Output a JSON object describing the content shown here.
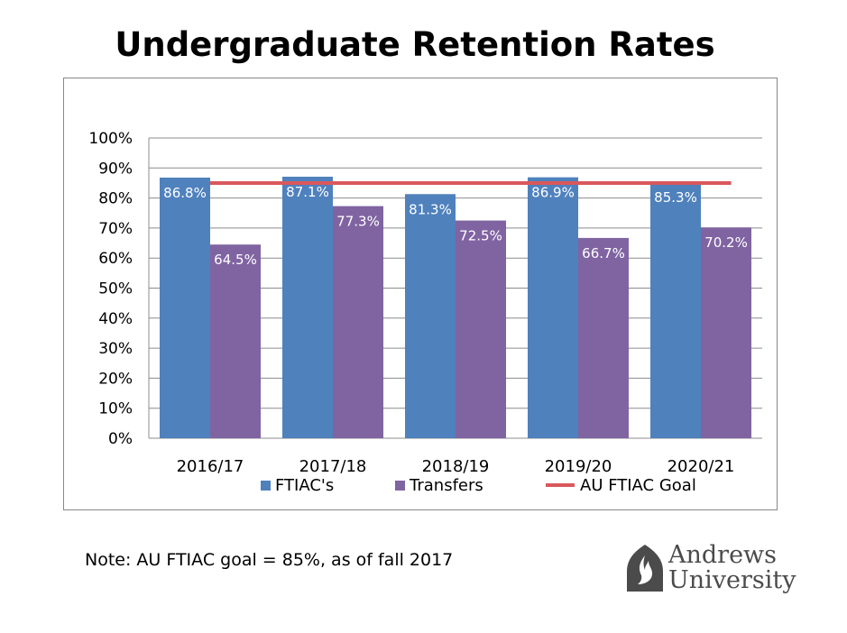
{
  "title": "Undergraduate Retention Rates",
  "note": "Note: AU FTIAC goal = 85%, as of fall 2017",
  "logo": {
    "line1": "Andrews",
    "line2": "University",
    "icon": "flame-shield-icon"
  },
  "chart_data": {
    "type": "bar",
    "title": "Undergraduate Retention Rates",
    "categories": [
      "2016/17",
      "2017/18",
      "2018/19",
      "2019/20",
      "2020/21"
    ],
    "series": [
      {
        "name": "FTIAC's",
        "values": [
          86.8,
          87.1,
          81.3,
          86.9,
          85.3
        ],
        "labels": [
          "86.8%",
          "87.1%",
          "81.3%",
          "86.9%",
          "85.3%"
        ],
        "color": "#4f81bd"
      },
      {
        "name": "Transfers",
        "values": [
          64.5,
          77.3,
          72.5,
          66.7,
          70.2
        ],
        "labels": [
          "64.5%",
          "77.3%",
          "72.5%",
          "66.7%",
          "70.2%"
        ],
        "color": "#8064a2"
      }
    ],
    "goal_line": {
      "name": "AU FTIAC Goal",
      "value": 85,
      "color": "#d9585b"
    },
    "y_ticks": [
      "0%",
      "10%",
      "20%",
      "30%",
      "40%",
      "50%",
      "60%",
      "70%",
      "80%",
      "90%",
      "100%"
    ],
    "ylim": [
      0,
      100
    ],
    "grid": true,
    "legend_position": "bottom"
  }
}
